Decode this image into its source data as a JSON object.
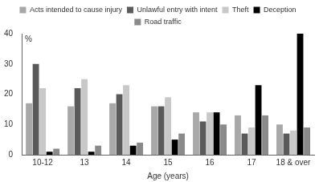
{
  "chart_data": {
    "type": "bar",
    "x_label": "Age (years)",
    "y_label": "%",
    "categories": [
      "10-12",
      "13",
      "14",
      "15",
      "16",
      "17",
      "18 & over"
    ],
    "series": [
      {
        "name": "Acts intended to cause injury",
        "color": "#a8a8a8",
        "values": [
          17,
          16,
          17,
          16,
          14,
          13,
          10
        ]
      },
      {
        "name": "Unlawful entry with intent",
        "color": "#5a5a5a",
        "values": [
          30,
          22,
          20,
          16,
          11,
          7,
          7
        ]
      },
      {
        "name": "Theft",
        "color": "#c8c8c8",
        "values": [
          22,
          25,
          23,
          19,
          14,
          9,
          8
        ]
      },
      {
        "name": "Deception",
        "color": "#000000",
        "values": [
          1,
          1,
          3,
          5,
          14,
          23,
          40
        ]
      },
      {
        "name": "Road traffic",
        "color": "#8a8a8a",
        "values": [
          2,
          3,
          4,
          7,
          10,
          13,
          9
        ]
      }
    ],
    "ylim": [
      0,
      40
    ],
    "yticks": [
      0,
      10,
      20,
      30,
      40
    ],
    "grid": false,
    "legend": "top"
  }
}
